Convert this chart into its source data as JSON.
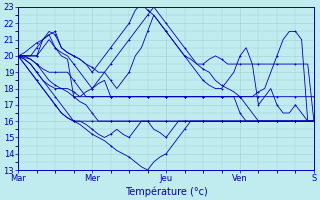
{
  "xlabel": "Température (°c)",
  "background_color": "#c0ecf0",
  "grid_color": "#a0ccd4",
  "line_color": "#0000bb",
  "marker": "+",
  "ylim": [
    13,
    23
  ],
  "yticks": [
    13,
    14,
    15,
    16,
    17,
    18,
    19,
    20,
    21,
    22,
    23
  ],
  "xtick_labels": [
    "Mar",
    "Mer",
    "Jeu",
    "Ven",
    "S"
  ],
  "xtick_positions": [
    0,
    24,
    48,
    72,
    96
  ],
  "series": [
    [
      20.0,
      20.0,
      20.0,
      20.0,
      21.0,
      21.3,
      20.5,
      20.0,
      19.8,
      17.5,
      17.5,
      17.8,
      18.0,
      18.3,
      18.5,
      17.5,
      17.5,
      17.5,
      17.5,
      17.5,
      17.5,
      17.5,
      17.5,
      17.5,
      17.5,
      17.5,
      17.5,
      17.5,
      17.5,
      17.5,
      17.5,
      17.5,
      17.5,
      17.5,
      17.5,
      17.5,
      16.5,
      16.0,
      16.0,
      16.0,
      16.0,
      16.0,
      16.0,
      16.0,
      16.0,
      16.0,
      16.0,
      16.0,
      16.0
    ],
    [
      20.0,
      20.0,
      19.8,
      19.5,
      19.0,
      18.5,
      18.2,
      18.0,
      18.0,
      17.8,
      17.5,
      17.5,
      17.5,
      17.5,
      17.5,
      17.5,
      17.5,
      17.5,
      17.5,
      17.5,
      17.5,
      17.5,
      17.5,
      17.5,
      17.5,
      17.5,
      17.5,
      17.5,
      17.5,
      17.5,
      17.5,
      17.5,
      17.5,
      17.5,
      17.5,
      17.5,
      17.5,
      17.0,
      16.5,
      16.0,
      16.0,
      16.0,
      16.0,
      16.0,
      16.0,
      16.0,
      16.0,
      16.0,
      16.0
    ],
    [
      20.0,
      19.9,
      19.8,
      19.5,
      19.2,
      19.0,
      19.0,
      19.0,
      19.0,
      18.5,
      18.0,
      17.5,
      17.5,
      17.5,
      17.5,
      17.5,
      17.5,
      17.5,
      17.5,
      17.5,
      17.5,
      17.5,
      17.5,
      17.5,
      17.5,
      17.5,
      17.5,
      17.5,
      17.5,
      17.5,
      17.5,
      17.5,
      17.5,
      17.5,
      17.5,
      17.5,
      17.5,
      17.5,
      17.5,
      17.5,
      17.5,
      17.5,
      17.5,
      17.5,
      17.5,
      17.5,
      17.5,
      17.5,
      17.5
    ],
    [
      20.0,
      20.0,
      20.0,
      20.5,
      21.0,
      21.5,
      21.3,
      20.5,
      20.2,
      20.0,
      19.8,
      19.5,
      19.3,
      19.0,
      19.0,
      19.5,
      20.0,
      20.5,
      21.0,
      21.5,
      22.0,
      22.5,
      23.0,
      22.5,
      22.0,
      21.5,
      21.0,
      20.5,
      20.0,
      19.5,
      19.2,
      19.0,
      18.5,
      18.2,
      18.0,
      17.8,
      17.5,
      17.5,
      17.5,
      17.8,
      18.0,
      19.0,
      20.0,
      21.0,
      21.5,
      21.5,
      21.0,
      16.0,
      16.0
    ],
    [
      20.0,
      19.8,
      19.5,
      19.0,
      18.5,
      18.0,
      17.5,
      17.0,
      16.5,
      16.0,
      16.0,
      16.0,
      16.0,
      16.0,
      16.0,
      16.0,
      16.0,
      16.0,
      16.0,
      16.0,
      16.0,
      16.0,
      16.0,
      16.0,
      16.0,
      16.0,
      16.0,
      16.0,
      16.0,
      16.0,
      16.0,
      16.0,
      16.0,
      16.0,
      16.0,
      16.0,
      16.0,
      16.0,
      16.0,
      16.0,
      16.0,
      16.0,
      16.0,
      16.0,
      16.0,
      16.0,
      16.0,
      16.0,
      16.0
    ],
    [
      20.0,
      19.8,
      19.5,
      19.0,
      18.5,
      18.2,
      18.0,
      18.0,
      17.8,
      17.5,
      17.2,
      17.0,
      16.5,
      16.0,
      16.0,
      16.0,
      16.0,
      16.0,
      16.0,
      16.0,
      16.0,
      16.0,
      16.0,
      16.0,
      16.0,
      16.0,
      16.0,
      16.0,
      16.0,
      16.0,
      16.0,
      16.0,
      16.0,
      16.0,
      16.0,
      16.0,
      16.0,
      16.0,
      16.0,
      16.0,
      16.0,
      16.0,
      16.0,
      16.0,
      16.0,
      16.0,
      16.0,
      16.0,
      16.0
    ],
    [
      20.0,
      19.5,
      19.0,
      18.5,
      18.0,
      17.5,
      17.0,
      16.5,
      16.2,
      16.0,
      16.0,
      15.8,
      15.5,
      15.2,
      15.0,
      15.2,
      15.5,
      15.2,
      15.0,
      15.5,
      16.0,
      16.0,
      15.5,
      15.3,
      15.0,
      15.5,
      16.0,
      16.0,
      16.0,
      16.0,
      16.0,
      16.0,
      16.0,
      16.0,
      16.0,
      16.0,
      16.0,
      16.0,
      16.0,
      16.0,
      16.0,
      16.0,
      16.0,
      16.0,
      16.0,
      16.0,
      16.0,
      16.0,
      16.0
    ],
    [
      20.0,
      19.5,
      19.0,
      18.5,
      18.0,
      17.5,
      17.0,
      16.5,
      16.2,
      16.0,
      15.8,
      15.5,
      15.2,
      15.0,
      14.8,
      14.5,
      14.2,
      14.0,
      13.8,
      13.5,
      13.2,
      13.0,
      13.5,
      13.8,
      14.0,
      14.5,
      15.0,
      15.5,
      16.0,
      16.0,
      16.0,
      16.0,
      16.0,
      16.0,
      16.0,
      16.0,
      16.0,
      16.0,
      16.0,
      16.0,
      16.0,
      16.0,
      16.0,
      16.0,
      16.0,
      16.0,
      16.0,
      16.0,
      16.0
    ],
    [
      20.0,
      20.2,
      20.5,
      20.8,
      21.0,
      21.3,
      21.5,
      20.5,
      20.2,
      20.0,
      19.8,
      19.5,
      19.0,
      19.5,
      20.0,
      20.5,
      21.0,
      21.5,
      22.0,
      22.8,
      23.2,
      22.8,
      22.5,
      22.0,
      21.5,
      21.0,
      20.5,
      20.0,
      19.8,
      19.5,
      19.5,
      19.8,
      20.0,
      19.8,
      19.5,
      19.5,
      19.5,
      19.5,
      19.5,
      19.5,
      19.5,
      19.5,
      19.5,
      19.5,
      19.5,
      19.5,
      19.5,
      19.5,
      16.0
    ],
    [
      20.0,
      20.0,
      20.0,
      20.0,
      20.5,
      21.0,
      20.5,
      20.2,
      20.0,
      19.5,
      19.0,
      18.5,
      18.0,
      18.5,
      19.0,
      18.5,
      18.0,
      18.5,
      19.0,
      20.0,
      20.5,
      21.5,
      22.5,
      22.0,
      21.5,
      21.0,
      20.5,
      20.0,
      19.5,
      19.0,
      18.5,
      18.2,
      18.0,
      18.0,
      18.5,
      19.0,
      20.0,
      20.5,
      19.5,
      17.0,
      17.5,
      18.0,
      17.0,
      16.5,
      16.5,
      17.0,
      16.5,
      16.0,
      16.0
    ]
  ]
}
